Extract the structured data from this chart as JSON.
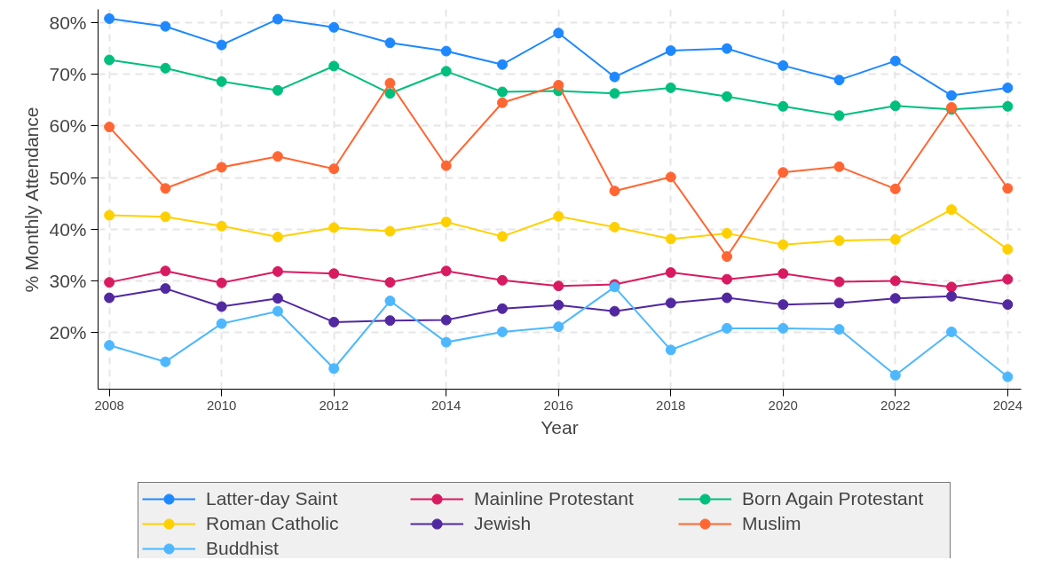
{
  "chart_data": {
    "type": "line",
    "xlabel": "Year",
    "ylabel": "% Monthly Attendance",
    "x": [
      2008,
      2009,
      2010,
      2011,
      2012,
      2013,
      2014,
      2015,
      2016,
      2017,
      2018,
      2019,
      2020,
      2021,
      2022,
      2023,
      2024
    ],
    "series": [
      {
        "name": "Latter-day Saint",
        "color": "#1e88ff",
        "values": [
          80.8,
          79.3,
          75.7,
          80.7,
          79.1,
          76.1,
          74.5,
          71.9,
          78.0,
          69.5,
          74.6,
          75.0,
          71.7,
          68.9,
          72.6,
          65.9,
          67.4
        ]
      },
      {
        "name": "Mainline Protestant",
        "color": "#d81b60",
        "values": [
          29.7,
          31.9,
          29.6,
          31.8,
          31.4,
          29.7,
          31.9,
          30.1,
          29.0,
          29.3,
          31.6,
          30.3,
          31.4,
          29.8,
          30.0,
          28.8,
          30.3
        ]
      },
      {
        "name": "Born Again Protestant",
        "color": "#00bf7d",
        "values": [
          72.8,
          71.2,
          68.6,
          66.9,
          71.6,
          66.3,
          70.6,
          66.6,
          66.8,
          66.3,
          67.4,
          65.7,
          63.8,
          62.0,
          63.9,
          63.2,
          63.8
        ]
      },
      {
        "name": "Roman Catholic",
        "color": "#ffd000",
        "values": [
          42.7,
          42.4,
          40.6,
          38.5,
          40.3,
          39.6,
          41.4,
          38.6,
          42.5,
          40.4,
          38.1,
          39.2,
          37.0,
          37.8,
          38.0,
          43.8,
          36.1
        ]
      },
      {
        "name": "Jewish",
        "color": "#5128a0",
        "values": [
          26.7,
          28.5,
          25.0,
          26.6,
          22.0,
          22.3,
          22.4,
          24.6,
          25.3,
          24.1,
          25.7,
          26.7,
          25.4,
          25.7,
          26.6,
          27.0,
          25.4
        ]
      },
      {
        "name": "Muslim",
        "color": "#ff6633",
        "values": [
          59.8,
          47.9,
          52.0,
          54.1,
          51.7,
          68.3,
          52.3,
          64.5,
          67.9,
          47.4,
          50.1,
          34.7,
          51.0,
          52.1,
          47.8,
          63.6,
          47.9
        ]
      },
      {
        "name": "Buddhist",
        "color": "#4db8ff",
        "values": [
          17.5,
          14.3,
          21.7,
          24.1,
          13.0,
          26.1,
          18.1,
          20.1,
          21.1,
          28.8,
          16.6,
          20.8,
          20.8,
          20.6,
          11.7,
          20.1,
          11.4
        ]
      }
    ],
    "xlim": [
      2007.8,
      2024.24
    ],
    "xticks": [
      2008,
      2010,
      2012,
      2014,
      2016,
      2018,
      2020,
      2022,
      2024
    ],
    "ylim": [
      9.0,
      82.6
    ],
    "yticks": [
      {
        "value": 20,
        "label": "20%"
      },
      {
        "value": 30,
        "label": "30%"
      },
      {
        "value": 40,
        "label": "40%"
      },
      {
        "value": 50,
        "label": "50%"
      },
      {
        "value": 60,
        "label": "60%"
      },
      {
        "value": 70,
        "label": "70%"
      },
      {
        "value": 80,
        "label": "80%"
      }
    ],
    "grid": true,
    "legend": "bottom",
    "marker": "circle",
    "line_style": "solid"
  }
}
